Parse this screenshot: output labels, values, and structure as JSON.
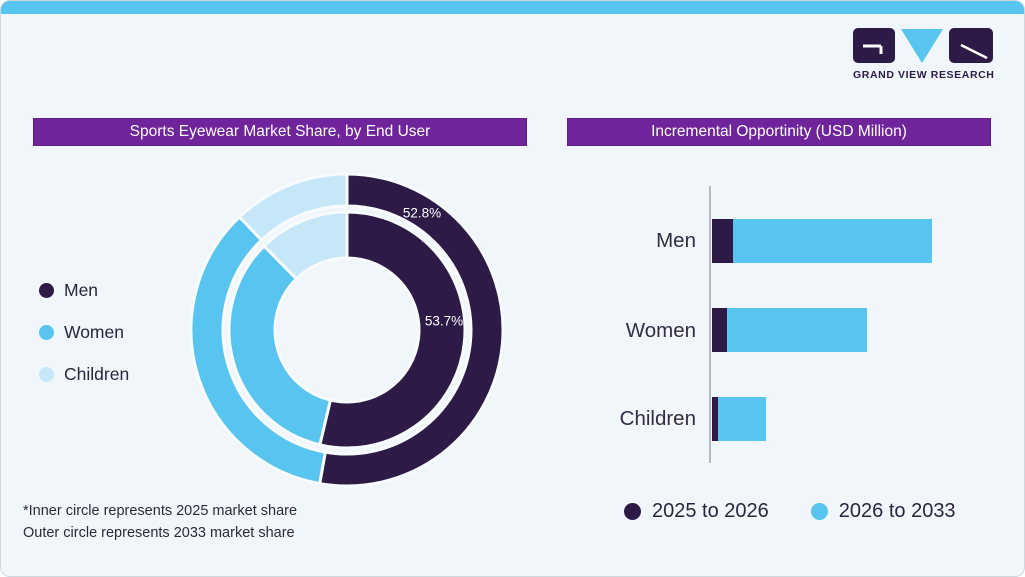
{
  "brand": {
    "logo_text": "GRAND VIEW RESEARCH"
  },
  "theme": {
    "accent_purple": "#6f249c",
    "dark_purple": "#2e1a47",
    "sky_blue": "#58c4f0",
    "pale_blue": "#c5e7f8",
    "background": "#f0f6fa",
    "top_strip": "#58c4f0"
  },
  "left_panel": {
    "title": "Sports Eyewear Market Share, by End User",
    "legend": [
      {
        "label": "Men",
        "color": "#2e1a47"
      },
      {
        "label": "Women",
        "color": "#58c4f0"
      },
      {
        "label": "Children",
        "color": "#c5e7f8"
      }
    ],
    "footnote_line1": "*Inner circle represents 2025 market share",
    "footnote_line2": "Outer circle represents 2033 market share"
  },
  "right_panel": {
    "title": "Incremental Opportinity (USD Million)",
    "legend": [
      {
        "label": "2025 to 2026",
        "color": "#2e1a47"
      },
      {
        "label": "2026 to 2033",
        "color": "#58c4f0"
      }
    ]
  },
  "chart_data": [
    {
      "type": "pie",
      "subtype": "concentric-donut",
      "title": "Sports Eyewear Market Share, by End User",
      "categories": [
        "Men",
        "Women",
        "Children"
      ],
      "colors": [
        "#2e1a47",
        "#58c4f0",
        "#c5e7f8"
      ],
      "rings": [
        {
          "name": "2025 market share (inner circle)",
          "values": [
            53.7,
            33.9,
            12.4
          ]
        },
        {
          "name": "2033 market share (outer circle)",
          "values": [
            52.8,
            35.1,
            12.1
          ]
        }
      ],
      "data_labels": [
        {
          "text": "52.8%",
          "ring": "outer",
          "category": "Men"
        },
        {
          "text": "53.7%",
          "ring": "inner",
          "category": "Men"
        }
      ],
      "legend_position": "left",
      "start_angle_deg": 0,
      "direction": "clockwise"
    },
    {
      "type": "bar",
      "orientation": "horizontal",
      "stacked": true,
      "title": "Incremental Opportinity (USD Million)",
      "categories": [
        "Men",
        "Women",
        "Children"
      ],
      "series": [
        {
          "name": "2025 to 2026",
          "color": "#2e1a47",
          "values": [
            21,
            15,
            6
          ]
        },
        {
          "name": "2026 to 2033",
          "color": "#58c4f0",
          "values": [
            199,
            140,
            48
          ]
        }
      ],
      "value_units": "relative length (no numeric axis shown in figure)",
      "xlim": [
        0,
        222
      ],
      "grid": false,
      "legend_position": "bottom"
    }
  ]
}
